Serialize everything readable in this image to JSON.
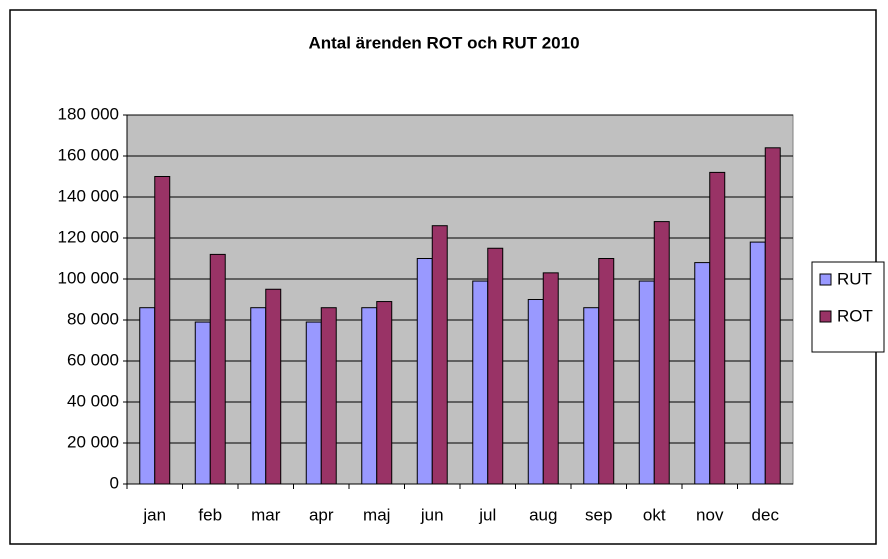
{
  "chart_data": {
    "type": "bar",
    "title": "Antal ärenden ROT och RUT 2010",
    "categories": [
      "jan",
      "feb",
      "mar",
      "apr",
      "maj",
      "jun",
      "jul",
      "aug",
      "sep",
      "okt",
      "nov",
      "dec"
    ],
    "series": [
      {
        "name": "RUT",
        "color": "#9999ff",
        "values": [
          86000,
          79000,
          86000,
          79000,
          86000,
          110000,
          99000,
          90000,
          86000,
          99000,
          108000,
          118000
        ]
      },
      {
        "name": "ROT",
        "color": "#993366",
        "values": [
          150000,
          112000,
          95000,
          86000,
          89000,
          126000,
          115000,
          103000,
          110000,
          128000,
          152000,
          164000
        ]
      }
    ],
    "ylim": [
      0,
      180000
    ],
    "yticks": [
      0,
      {
        "value": 20000,
        "label": "20 000"
      },
      {
        "value": 40000,
        "label": "40 000"
      },
      {
        "value": 60000,
        "label": "60 000"
      },
      {
        "value": 80000,
        "label": "80 000"
      },
      {
        "value": 100000,
        "label": "100 000"
      },
      {
        "value": 120000,
        "label": "120 000"
      },
      {
        "value": 140000,
        "label": "140 000"
      },
      {
        "value": 160000,
        "label": "160 000"
      },
      {
        "value": 180000,
        "label": "180 000"
      }
    ],
    "grid": true,
    "legend": "right"
  }
}
